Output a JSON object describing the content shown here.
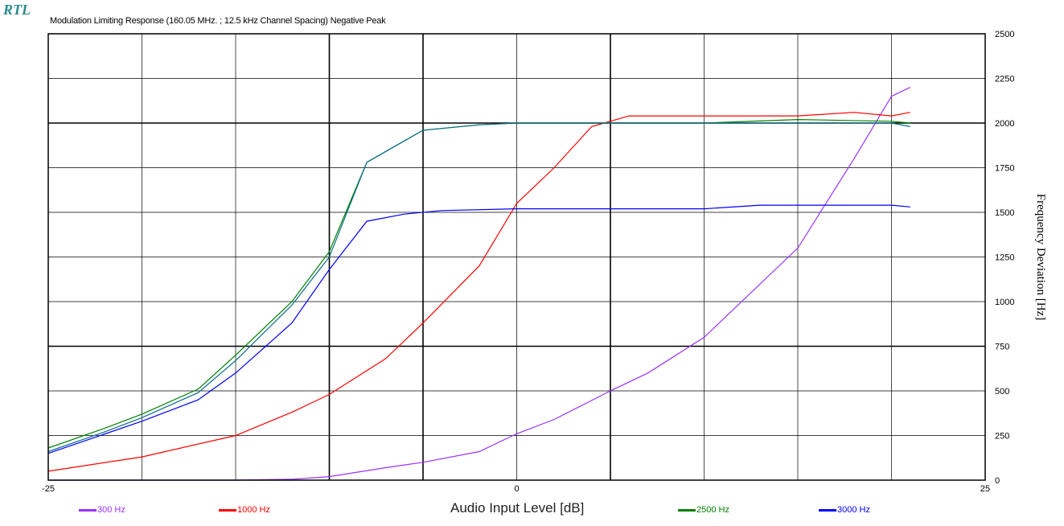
{
  "header": {
    "logo_text": "RTL",
    "title": "Modulation Limiting Response (160.05 MHz. ; 12.5 kHz Channel Spacing) Negative Peak"
  },
  "chart_data": {
    "type": "line",
    "title": "Modulation Limiting Response (160.05 MHz. ; 12.5 kHz Channel Spacing) Negative Peak",
    "xlabel": "Audio Input Level [dB]",
    "ylabel": "Frequency Deviation [Hz]",
    "xlim": [
      -25,
      25
    ],
    "ylim": [
      0,
      2500
    ],
    "x_ticks": [
      -25,
      0,
      25
    ],
    "y_ticks": [
      0,
      250,
      500,
      750,
      1000,
      1250,
      1500,
      1750,
      2000,
      2250,
      2500
    ],
    "x_grid": [
      -20,
      -15,
      -10,
      -5,
      0,
      5,
      10,
      15,
      20
    ],
    "major_grid_x": [
      -10,
      -5,
      5
    ],
    "major_grid_y": [
      750,
      2000
    ],
    "grid": true,
    "y_axis_side": "right",
    "legend_position": "bottom",
    "series": [
      {
        "name": "300 Hz",
        "color": "#9933ff",
        "x": [
          -25,
          -20,
          -15,
          -12,
          -10,
          -7,
          -5,
          -2,
          0,
          2,
          5,
          7,
          10,
          15,
          18,
          20,
          21
        ],
        "y": [
          0,
          0,
          0,
          5,
          20,
          70,
          100,
          160,
          260,
          340,
          500,
          600,
          800,
          1300,
          1800,
          2150,
          2200
        ]
      },
      {
        "name": "1000 Hz",
        "color": "#ff0000",
        "x": [
          -25,
          -20,
          -15,
          -12,
          -10,
          -7,
          -5,
          -2,
          0,
          2,
          4,
          6,
          10,
          15,
          18,
          20,
          21
        ],
        "y": [
          50,
          130,
          250,
          380,
          480,
          680,
          880,
          1200,
          1550,
          1750,
          1980,
          2040,
          2040,
          2040,
          2060,
          2040,
          2060
        ]
      },
      {
        "name": "2500 Hz",
        "color": "#008000",
        "x": [
          -25,
          -22,
          -20,
          -17,
          -15,
          -12,
          -10,
          -8,
          -5,
          -2,
          0,
          5,
          10,
          15,
          20,
          21
        ],
        "y": [
          180,
          290,
          370,
          510,
          700,
          1000,
          1280,
          1780,
          1960,
          1990,
          2000,
          2000,
          2000,
          2020,
          2010,
          2000
        ]
      },
      {
        "name": "3000 Hz",
        "color": "#0000ff",
        "x": [
          -25,
          -20,
          -17,
          -15,
          -12,
          -10,
          -8,
          -6,
          -4,
          0,
          5,
          10,
          13,
          15,
          20,
          21
        ],
        "y": [
          150,
          330,
          450,
          600,
          880,
          1180,
          1450,
          1490,
          1510,
          1520,
          1520,
          1520,
          1540,
          1540,
          1540,
          1530
        ]
      },
      {
        "name": "",
        "color": "#0b6d8a",
        "x": [
          -25,
          -22,
          -20,
          -17,
          -15,
          -12,
          -10,
          -8,
          -5,
          -2,
          0,
          5,
          10,
          15,
          20,
          21
        ],
        "y": [
          160,
          270,
          350,
          490,
          670,
          980,
          1250,
          1780,
          1960,
          1990,
          2000,
          2000,
          2000,
          2000,
          2000,
          1980
        ]
      }
    ]
  }
}
